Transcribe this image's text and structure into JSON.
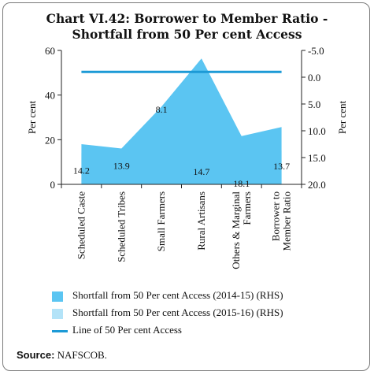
{
  "chart_data": {
    "type": "area",
    "title_lines": [
      "Chart VI.42: Borrower to Member Ratio -",
      "Shortfall from 50 Per cent Access"
    ],
    "ylabel_left": "Per cent",
    "ylabel_right": "Per cent",
    "left_axis": {
      "ylim": [
        0,
        60
      ],
      "ticks": [
        "0",
        "20",
        "40",
        "60"
      ]
    },
    "right_axis": {
      "ylim": [
        20.0,
        -5.0
      ],
      "ticks": [
        "-5.0",
        "0.0",
        "5.0",
        "10.0",
        "15.0",
        "20.0"
      ],
      "inverted": true
    },
    "categories": [
      "Scheduled Caste",
      "Scheduled Tribes",
      "Small Farmers",
      "Rural Artisans",
      "Others & Marginal Farmers",
      "Borrower to Member Ratio"
    ],
    "category_label_lines": [
      [
        "Scheduled Caste"
      ],
      [
        "Scheduled Tribes"
      ],
      [
        "Small Farmers"
      ],
      [
        "Rural Artisans"
      ],
      [
        "Others & Marginal",
        "Farmers"
      ],
      [
        "Borrower to",
        "Member Ratio"
      ]
    ],
    "series": [
      {
        "name": "Shortfall from 50 Per cent Access (2014-15) (RHS)",
        "axis": "right",
        "color": "#5bc5f2",
        "values": [
          12.5,
          13.3,
          5.5,
          -3.5,
          11.0,
          9.3
        ]
      },
      {
        "name": "Shortfall from 50 Per cent Access (2015-16) (RHS)",
        "axis": "right",
        "color": "#b3e3f8",
        "values": [
          14.2,
          13.9,
          8.1,
          14.7,
          18.1,
          13.7
        ],
        "data_labels": [
          "14.2",
          "13.9",
          "8.1",
          "14.7",
          "18.1",
          "13.7"
        ]
      },
      {
        "name": "Line of 50 Per cent Access",
        "axis": "right",
        "color": "#1c9ad6",
        "values": [
          -1.0,
          -1.0,
          -1.0,
          -1.0,
          -1.0,
          -1.0
        ]
      }
    ],
    "source_label": "Source:",
    "source_text": "NAFSCOB."
  }
}
